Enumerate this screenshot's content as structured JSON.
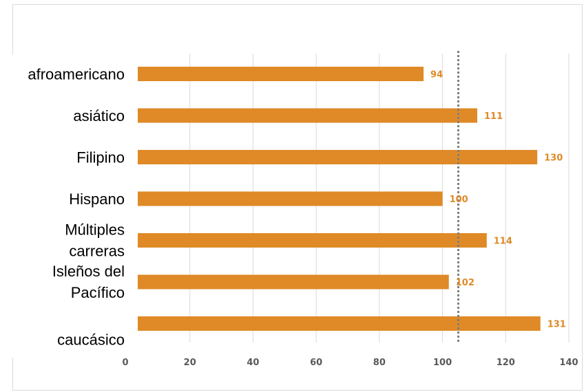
{
  "chart_data": {
    "type": "bar",
    "orientation": "horizontal",
    "categories": [
      [
        "afroamericano"
      ],
      [
        "asiático"
      ],
      [
        "Filipino"
      ],
      [
        "Hispano"
      ],
      [
        "Múltiples",
        "carreras"
      ],
      [
        "Isleños del",
        "Pacífico"
      ],
      [
        "caucásico"
      ]
    ],
    "values": [
      94,
      111,
      130,
      100,
      114,
      102,
      131
    ],
    "data_labels": [
      "94",
      "111",
      "130",
      "100",
      "114",
      "102",
      "131"
    ],
    "xlim": [
      0,
      140
    ],
    "x_ticks": [
      0,
      20,
      40,
      60,
      80,
      100,
      120,
      140
    ],
    "x_tick_labels": [
      "0",
      "20",
      "40",
      "60",
      "80",
      "100",
      "120",
      "140"
    ],
    "reference_line": {
      "value": 105,
      "style": "dotted"
    },
    "grid": true,
    "colors": {
      "bar": "#df8a27",
      "data_label": "#df8a27",
      "reference_line": "#7f7f7f",
      "grid": "#d9d9d9"
    }
  }
}
